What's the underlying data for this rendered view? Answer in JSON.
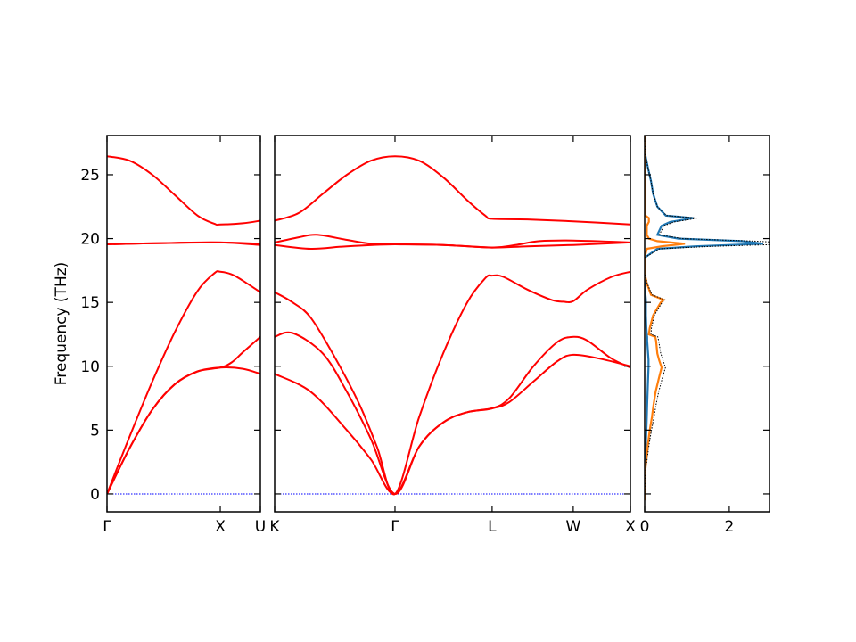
{
  "chart_data": {
    "type": "line",
    "ylabel": "Frequency (THz)",
    "ylim": [
      -1.4,
      28.07
    ],
    "yticks": [
      0,
      5,
      10,
      15,
      20,
      25
    ],
    "colors": {
      "bands": "#ff0000",
      "zero_line": "#0000ff",
      "dos_blue": "#1f77b4",
      "dos_orange": "#ff7f0e",
      "dos_total": "#000000"
    },
    "band_panels": [
      {
        "xlim": [
          0,
          1.354
        ],
        "ticks": [
          {
            "x": 0,
            "label": "Γ"
          },
          {
            "x": 1,
            "label": "X"
          },
          {
            "x": 1.354,
            "label": "U"
          }
        ],
        "bands": [
          [
            [
              0,
              26.45
            ],
            [
              0.2,
              26.1
            ],
            [
              0.4,
              25.0
            ],
            [
              0.6,
              23.4
            ],
            [
              0.8,
              21.8
            ],
            [
              0.95,
              21.15
            ],
            [
              1.0,
              21.1
            ],
            [
              1.2,
              21.2
            ],
            [
              1.354,
              21.4
            ]
          ],
          [
            [
              0,
              19.55
            ],
            [
              0.5,
              19.65
            ],
            [
              1,
              19.7
            ],
            [
              1.354,
              19.6
            ]
          ],
          [
            [
              0,
              19.55
            ],
            [
              0.5,
              19.65
            ],
            [
              1,
              19.7
            ],
            [
              1.354,
              19.5
            ]
          ],
          [
            [
              0,
              0
            ],
            [
              0.2,
              4.5
            ],
            [
              0.4,
              8.8
            ],
            [
              0.6,
              12.7
            ],
            [
              0.8,
              15.9
            ],
            [
              0.95,
              17.3
            ],
            [
              1.0,
              17.4
            ],
            [
              1.1,
              17.2
            ],
            [
              1.2,
              16.7
            ],
            [
              1.354,
              15.8
            ]
          ],
          [
            [
              0,
              0
            ],
            [
              0.2,
              3.6
            ],
            [
              0.4,
              6.6
            ],
            [
              0.6,
              8.6
            ],
            [
              0.8,
              9.6
            ],
            [
              1.0,
              9.9
            ],
            [
              1.1,
              10.3
            ],
            [
              1.2,
              11.1
            ],
            [
              1.354,
              12.3
            ]
          ],
          [
            [
              0,
              0
            ],
            [
              0.2,
              3.6
            ],
            [
              0.4,
              6.6
            ],
            [
              0.6,
              8.6
            ],
            [
              0.8,
              9.6
            ],
            [
              1.0,
              9.9
            ],
            [
              1.2,
              9.8
            ],
            [
              1.354,
              9.4
            ]
          ]
        ]
      },
      {
        "xlim": [
          0,
          2.956
        ],
        "ticks": [
          {
            "x": 0,
            "label": "K"
          },
          {
            "x": 1,
            "label": "Γ"
          },
          {
            "x": 1.807,
            "label": "L"
          },
          {
            "x": 2.481,
            "label": "W"
          },
          {
            "x": 2.956,
            "label": "X"
          }
        ],
        "bands": [
          [
            [
              0,
              21.4
            ],
            [
              0.2,
              22.0
            ],
            [
              0.4,
              23.5
            ],
            [
              0.6,
              25.0
            ],
            [
              0.8,
              26.1
            ],
            [
              1.0,
              26.45
            ],
            [
              1.2,
              26.1
            ],
            [
              1.4,
              24.8
            ],
            [
              1.6,
              23.0
            ],
            [
              1.75,
              21.8
            ],
            [
              1.807,
              21.55
            ],
            [
              2.1,
              21.5
            ],
            [
              2.481,
              21.35
            ],
            [
              2.956,
              21.1
            ]
          ],
          [
            [
              0,
              19.7
            ],
            [
              0.2,
              20.1
            ],
            [
              0.35,
              20.3
            ],
            [
              0.6,
              19.9
            ],
            [
              0.8,
              19.6
            ],
            [
              1,
              19.55
            ],
            [
              1.4,
              19.5
            ],
            [
              1.807,
              19.3
            ],
            [
              2.0,
              19.5
            ],
            [
              2.2,
              19.8
            ],
            [
              2.481,
              19.85
            ],
            [
              2.956,
              19.7
            ]
          ],
          [
            [
              0,
              19.5
            ],
            [
              0.3,
              19.2
            ],
            [
              0.6,
              19.4
            ],
            [
              1,
              19.55
            ],
            [
              1.4,
              19.5
            ],
            [
              1.807,
              19.3
            ],
            [
              2.1,
              19.4
            ],
            [
              2.481,
              19.5
            ],
            [
              2.956,
              19.7
            ]
          ],
          [
            [
              0,
              15.8
            ],
            [
              0.15,
              15.0
            ],
            [
              0.3,
              13.8
            ],
            [
              0.5,
              10.7
            ],
            [
              0.7,
              7.1
            ],
            [
              0.85,
              3.7
            ],
            [
              1,
              0
            ],
            [
              1.2,
              6.0
            ],
            [
              1.4,
              11.0
            ],
            [
              1.6,
              15.0
            ],
            [
              1.75,
              16.9
            ],
            [
              1.807,
              17.1
            ],
            [
              1.9,
              17.0
            ],
            [
              2.1,
              16.0
            ],
            [
              2.3,
              15.2
            ],
            [
              2.4,
              15.05
            ],
            [
              2.481,
              15.1
            ],
            [
              2.6,
              16.0
            ],
            [
              2.8,
              17.0
            ],
            [
              2.956,
              17.4
            ]
          ],
          [
            [
              0,
              12.3
            ],
            [
              0.15,
              12.6
            ],
            [
              0.4,
              11.0
            ],
            [
              0.6,
              8.0
            ],
            [
              0.8,
              4.3
            ],
            [
              1,
              0
            ],
            [
              1.2,
              3.7
            ],
            [
              1.4,
              5.6
            ],
            [
              1.6,
              6.4
            ],
            [
              1.807,
              6.7
            ],
            [
              1.95,
              7.5
            ],
            [
              2.15,
              10.0
            ],
            [
              2.35,
              11.9
            ],
            [
              2.481,
              12.3
            ],
            [
              2.6,
              12.0
            ],
            [
              2.8,
              10.6
            ],
            [
              2.956,
              9.9
            ]
          ],
          [
            [
              0,
              9.4
            ],
            [
              0.3,
              8.0
            ],
            [
              0.6,
              5.0
            ],
            [
              0.8,
              2.7
            ],
            [
              1,
              0
            ],
            [
              1.2,
              3.7
            ],
            [
              1.4,
              5.6
            ],
            [
              1.6,
              6.4
            ],
            [
              1.807,
              6.7
            ],
            [
              1.95,
              7.2
            ],
            [
              2.15,
              8.8
            ],
            [
              2.35,
              10.4
            ],
            [
              2.481,
              10.9
            ],
            [
              2.7,
              10.6
            ],
            [
              2.956,
              10.0
            ]
          ]
        ]
      }
    ],
    "dos_panel": {
      "xlim": [
        0,
        2.95
      ],
      "xticks": [
        0,
        2
      ],
      "frequency": [
        -0.5,
        0,
        2,
        4,
        5,
        6,
        7,
        8,
        9,
        9.9,
        10.5,
        11,
        12,
        12.3,
        12.5,
        13,
        14,
        15,
        15.2,
        15.6,
        16.5,
        17.3,
        18.5,
        19.2,
        19.4,
        19.6,
        19.8,
        20.0,
        20.3,
        21,
        21.3,
        21.6,
        21.8,
        22.5,
        23.5,
        24.5,
        25.5,
        26.5,
        28
      ],
      "series": [
        {
          "style": "blue",
          "values": [
            0,
            0,
            0.01,
            0.03,
            0.04,
            0.05,
            0.06,
            0.07,
            0.08,
            0.09,
            0.09,
            0.08,
            0.06,
            0.06,
            0.05,
            0.04,
            0.03,
            0.03,
            0.03,
            0.02,
            0.01,
            0,
            0,
            0.3,
            1.2,
            2.8,
            2.3,
            0.8,
            0.3,
            0.4,
            0.6,
            1.15,
            0.5,
            0.3,
            0.2,
            0.15,
            0.08,
            0.02,
            0
          ]
        },
        {
          "style": "orange",
          "values": [
            0,
            0,
            0.02,
            0.08,
            0.12,
            0.17,
            0.21,
            0.26,
            0.33,
            0.4,
            0.34,
            0.3,
            0.27,
            0.25,
            0.1,
            0.12,
            0.2,
            0.38,
            0.45,
            0.15,
            0.05,
            0,
            0,
            0.05,
            0.4,
            0.95,
            0.3,
            0.1,
            0.05,
            0.05,
            0.1,
            0.1,
            0.02,
            0,
            0,
            0,
            0,
            0,
            0
          ]
        },
        {
          "style": "total-dotted",
          "values": [
            0,
            0,
            0.03,
            0.11,
            0.16,
            0.22,
            0.27,
            0.33,
            0.41,
            0.49,
            0.43,
            0.38,
            0.33,
            0.31,
            0.15,
            0.16,
            0.23,
            0.41,
            0.48,
            0.17,
            0.06,
            0,
            0,
            0.35,
            1.6,
            3.75,
            2.6,
            0.9,
            0.35,
            0.45,
            0.7,
            1.25,
            0.52,
            0.3,
            0.2,
            0.15,
            0.08,
            0.02,
            0
          ]
        }
      ]
    }
  }
}
